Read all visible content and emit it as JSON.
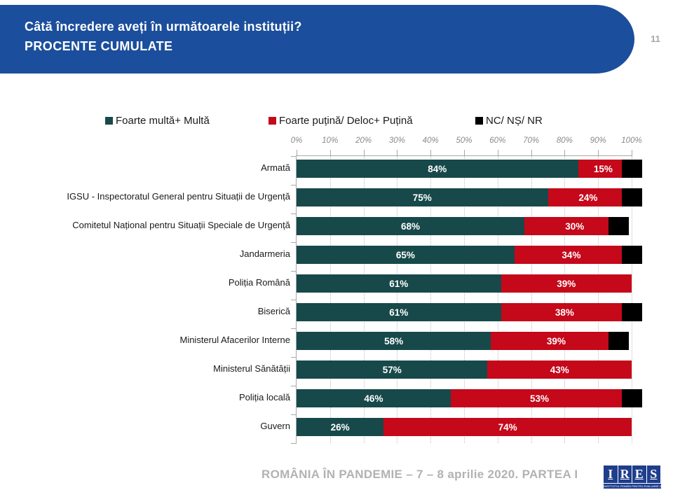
{
  "slide": {
    "title_line1": "Câtă încredere aveți în următoarele instituții?",
    "title_line2": "PROCENTE CUMULATE",
    "page_number": "11",
    "footer_text": "ROMÂNIA ÎN PANDEMIE – 7 – 8 aprilie 2020. PARTEA I",
    "logo": {
      "letters": [
        "I",
        "R",
        "E",
        "S"
      ],
      "tagline": "INSTITUTUL ROMÂN PENTRU EVALUARE ȘI STRATEGIE"
    }
  },
  "colors": {
    "banner_blue": "#1B4E9C",
    "positive": "#17494A",
    "negative": "#C5081A",
    "nc": "#000000",
    "grid": "#BFBFBF",
    "axis_text": "#8A8A8A",
    "footer_text": "#B2B2B2",
    "logo_blue": "#1F3E8C"
  },
  "chart_data": {
    "type": "bar",
    "orientation": "horizontal",
    "stacked": true,
    "title": "Câtă încredere aveți în următoarele instituții? PROCENTE CUMULATE",
    "legend_position": "top",
    "grid": true,
    "xlim": [
      0,
      100
    ],
    "x_ticks": [
      "0%",
      "10%",
      "20%",
      "30%",
      "40%",
      "50%",
      "60%",
      "70%",
      "80%",
      "90%",
      "100%"
    ],
    "value_suffix": "%",
    "categories": [
      "Armată",
      "IGSU - Inspectoratul General pentru Situații de Urgență",
      "Comitetul Național pentru Situații Speciale de Urgență",
      "Jandarmeria",
      "Poliția Română",
      "Biserică",
      "Ministerul Afacerilor Interne",
      "Ministerul Sănătății",
      "Poliția locală",
      "Guvern"
    ],
    "series": [
      {
        "name": "Foarte multă+ Multă",
        "color": "#17494A",
        "values": [
          84,
          75,
          68,
          65,
          61,
          61,
          58,
          57,
          46,
          26
        ]
      },
      {
        "name": "Foarte puțină/ Deloc+ Puțină",
        "color": "#C5081A",
        "values": [
          15,
          24,
          30,
          34,
          39,
          38,
          39,
          43,
          53,
          74
        ]
      },
      {
        "name": "NC/ NȘ/ NR",
        "color": "#000000",
        "values": [
          1,
          1,
          2,
          1,
          0,
          1,
          3,
          0,
          1,
          0
        ]
      }
    ]
  }
}
